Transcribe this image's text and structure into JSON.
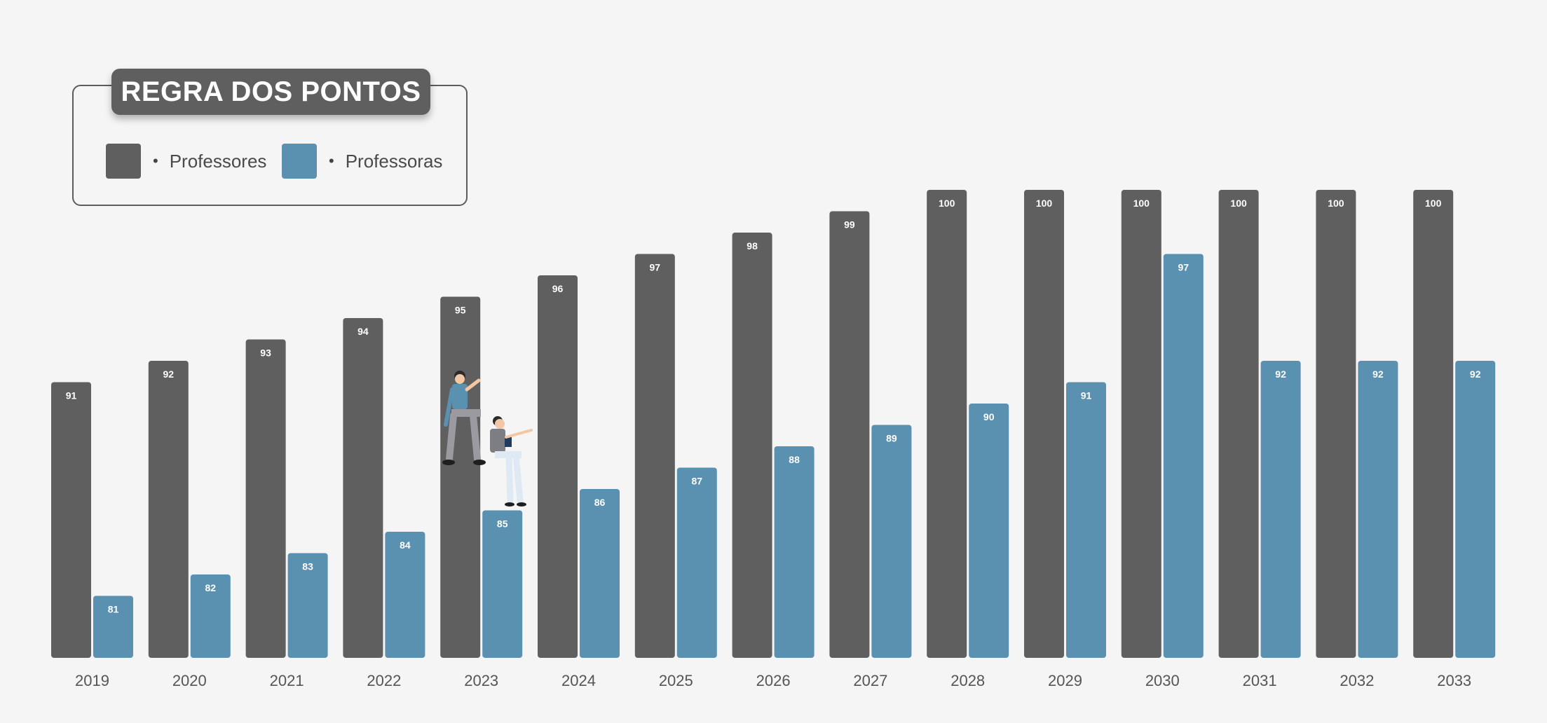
{
  "legend": {
    "title": "REGRA DOS PONTOS",
    "bullet": "•",
    "items": [
      {
        "label": "Professores",
        "color": "#5f5f5f"
      },
      {
        "label": "Professoras",
        "color": "#5a91b0"
      }
    ]
  },
  "colors": {
    "background": "#f5f5f5",
    "professores": "#5f5f5f",
    "professoras": "#5a91b0",
    "axis_text": "#555555",
    "bar_text": "#ffffff"
  },
  "illustration": {
    "icons": [
      "man-sitting-icon",
      "woman-with-tablet-icon"
    ]
  },
  "chart_data": {
    "type": "bar",
    "title": "REGRA DOS PONTOS",
    "categories": [
      "2019",
      "2020",
      "2021",
      "2022",
      "2023",
      "2024",
      "2025",
      "2026",
      "2027",
      "2028",
      "2029",
      "2030",
      "2031",
      "2032",
      "2033"
    ],
    "series": [
      {
        "name": "Professores",
        "values": [
          91,
          92,
          93,
          94,
          95,
          96,
          97,
          98,
          99,
          100,
          100,
          100,
          100,
          100,
          100
        ]
      },
      {
        "name": "Professoras",
        "values": [
          81,
          82,
          83,
          84,
          85,
          86,
          87,
          88,
          89,
          90,
          91,
          97,
          92,
          92,
          92
        ]
      }
    ],
    "ylim": [
      80,
      100
    ],
    "grid": false,
    "legend_position": "top-left"
  }
}
